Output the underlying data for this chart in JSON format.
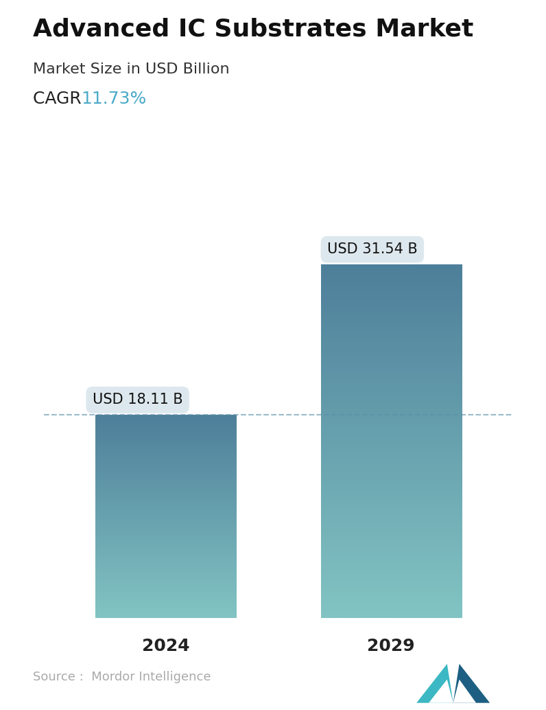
{
  "title": "Advanced IC Substrates Market",
  "subtitle": "Market Size in USD Billion",
  "cagr_label": "CAGR  ",
  "cagr_value": "11.73%",
  "cagr_color": "#4BAAC8",
  "categories": [
    "2024",
    "2029"
  ],
  "values": [
    18.11,
    31.54
  ],
  "bar_labels": [
    "USD 18.11 B",
    "USD 31.54 B"
  ],
  "bar_color_top": "#4E7F9A",
  "bar_color_bottom": "#82C4C3",
  "dashed_line_color": "#5B8FA8",
  "source_text": "Source :  Mordor Intelligence",
  "source_color": "#AAAAAA",
  "background_color": "#FFFFFF",
  "title_fontsize": 26,
  "subtitle_fontsize": 16,
  "cagr_fontsize": 18,
  "bar_label_fontsize": 15,
  "tick_label_fontsize": 18,
  "source_fontsize": 13,
  "ylim": [
    0,
    38
  ],
  "tooltip_bg": "#DDE8EE",
  "bar_positions": [
    0.26,
    0.74
  ],
  "bar_width": 0.3
}
